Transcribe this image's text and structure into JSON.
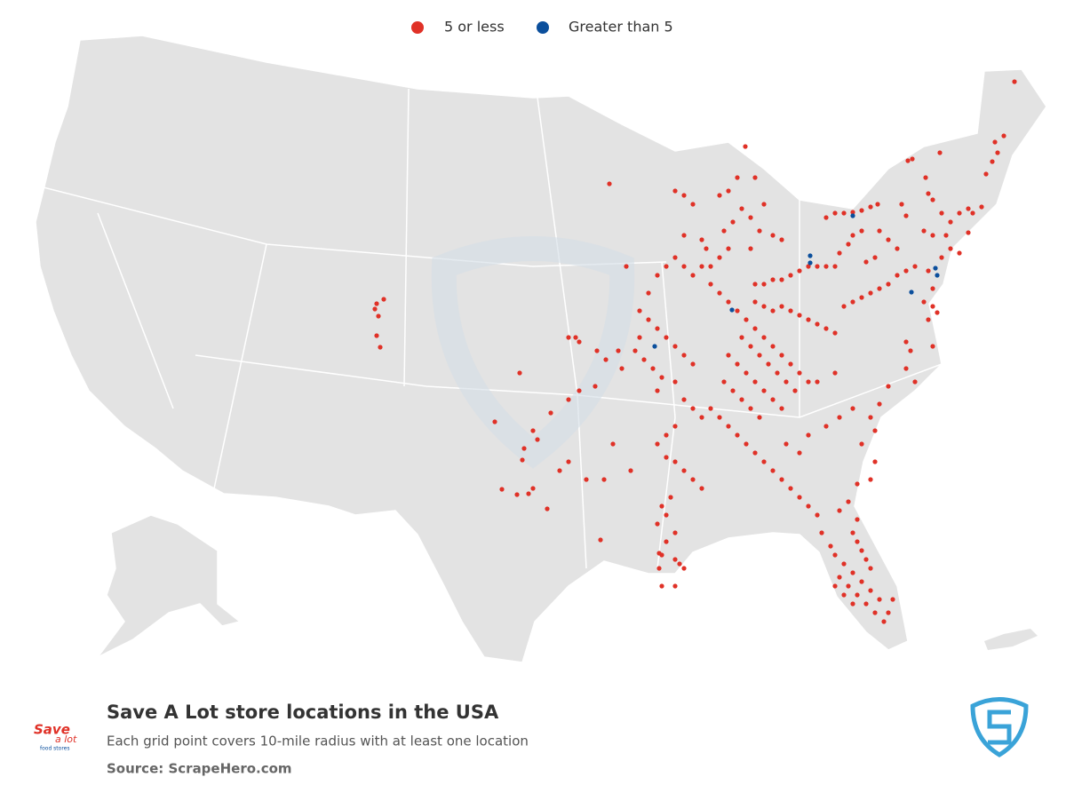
{
  "legend": [
    {
      "label": "5 or less",
      "color": "#e03127"
    },
    {
      "label": "Greater than 5",
      "color": "#0b4f9c"
    }
  ],
  "title": "Save A Lot store locations in the USA",
  "subtitle": "Each grid point covers 10-mile radius with at least one location",
  "source": "Source: ScrapeHero.com",
  "logo": {
    "line1": "Save",
    "line2": "a lot",
    "line3": "food stores"
  }
}
